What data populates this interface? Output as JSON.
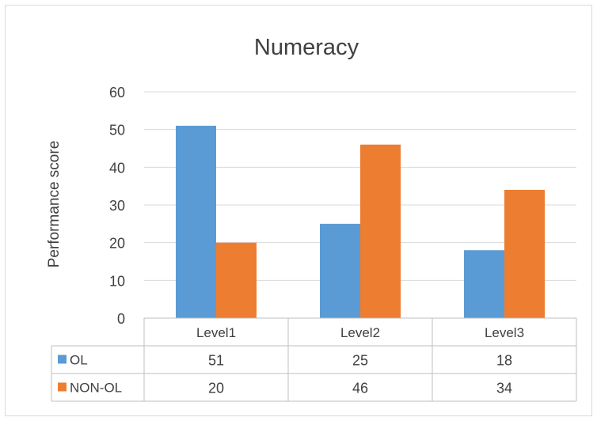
{
  "chart_data": {
    "type": "bar",
    "title": "Numeracy",
    "ylabel": "Performance score",
    "xlabel": "",
    "categories": [
      "Level1",
      "Level2",
      "Level3"
    ],
    "series": [
      {
        "name": "OL",
        "values": [
          51,
          25,
          18
        ],
        "color": "#5b9bd5"
      },
      {
        "name": "NON-OL",
        "values": [
          20,
          46,
          34
        ],
        "color": "#ed7d31"
      }
    ],
    "ylim": [
      0,
      60
    ],
    "yticks": [
      0,
      10,
      20,
      30,
      40,
      50,
      60
    ],
    "grid": true,
    "data_table": true
  }
}
